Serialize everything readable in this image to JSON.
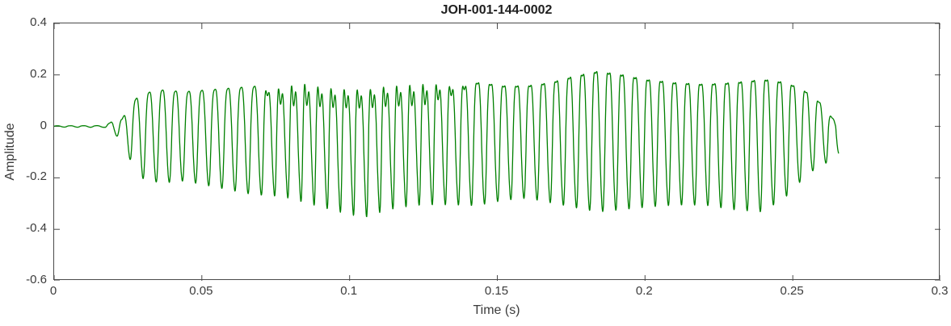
{
  "figure": {
    "background": "#ffffff"
  },
  "chart_data": {
    "type": "line",
    "title": "JOH-001-144-0002",
    "xlabel": "Time (s)",
    "ylabel": "Amplitude",
    "xlim": [
      0,
      0.3
    ],
    "ylim": [
      -0.6,
      0.4
    ],
    "xticks": [
      0,
      0.05,
      0.1,
      0.15,
      0.2,
      0.25,
      0.3
    ],
    "xtick_labels": [
      "0",
      "0.05",
      "0.1",
      "0.15",
      "0.2",
      "0.25",
      "0.3"
    ],
    "yticks": [
      -0.6,
      -0.4,
      -0.2,
      0,
      0.2,
      0.4
    ],
    "ytick_labels": [
      "-0.6",
      "-0.4",
      "-0.2",
      "0",
      "0.2",
      "0.4"
    ],
    "grid": false,
    "legend": null,
    "line_color": "#008000",
    "axis_color": "#4a4a4a",
    "label_color": "#3b3b3b",
    "signal": {
      "kind": "amplitude-envelope-waveform",
      "description": "speech-like oscillation, onset ~0.02 s, end ~0.2655 s",
      "base_frequency_hz": 225,
      "start_s": 0.0,
      "end_s": 0.2655,
      "envelope_t_upper_lower": [
        [
          0.0,
          0.003,
          -0.003
        ],
        [
          0.017,
          0.004,
          -0.004
        ],
        [
          0.019,
          0.02,
          -0.02
        ],
        [
          0.021,
          0.05,
          -0.04
        ],
        [
          0.023,
          0.04,
          -0.05
        ],
        [
          0.026,
          0.13,
          -0.15
        ],
        [
          0.03,
          0.18,
          -0.22
        ],
        [
          0.036,
          0.2,
          -0.24
        ],
        [
          0.044,
          0.19,
          -0.23
        ],
        [
          0.052,
          0.2,
          -0.25
        ],
        [
          0.06,
          0.21,
          -0.27
        ],
        [
          0.068,
          0.22,
          -0.29
        ],
        [
          0.076,
          0.25,
          -0.32
        ],
        [
          0.084,
          0.28,
          -0.35
        ],
        [
          0.092,
          0.25,
          -0.38
        ],
        [
          0.1,
          0.24,
          -0.41
        ],
        [
          0.106,
          0.24,
          -0.42
        ],
        [
          0.112,
          0.26,
          -0.39
        ],
        [
          0.12,
          0.27,
          -0.37
        ],
        [
          0.128,
          0.28,
          -0.36
        ],
        [
          0.136,
          0.26,
          -0.35
        ],
        [
          0.144,
          0.27,
          -0.34
        ],
        [
          0.152,
          0.25,
          -0.32
        ],
        [
          0.16,
          0.25,
          -0.31
        ],
        [
          0.168,
          0.27,
          -0.33
        ],
        [
          0.176,
          0.31,
          -0.35
        ],
        [
          0.184,
          0.34,
          -0.37
        ],
        [
          0.192,
          0.32,
          -0.36
        ],
        [
          0.2,
          0.29,
          -0.35
        ],
        [
          0.21,
          0.27,
          -0.34
        ],
        [
          0.22,
          0.26,
          -0.34
        ],
        [
          0.23,
          0.27,
          -0.36
        ],
        [
          0.24,
          0.29,
          -0.37
        ],
        [
          0.248,
          0.27,
          -0.3
        ],
        [
          0.254,
          0.22,
          -0.22
        ],
        [
          0.259,
          0.15,
          -0.17
        ],
        [
          0.263,
          0.06,
          -0.15
        ],
        [
          0.2655,
          0.01,
          -0.12
        ]
      ]
    }
  }
}
